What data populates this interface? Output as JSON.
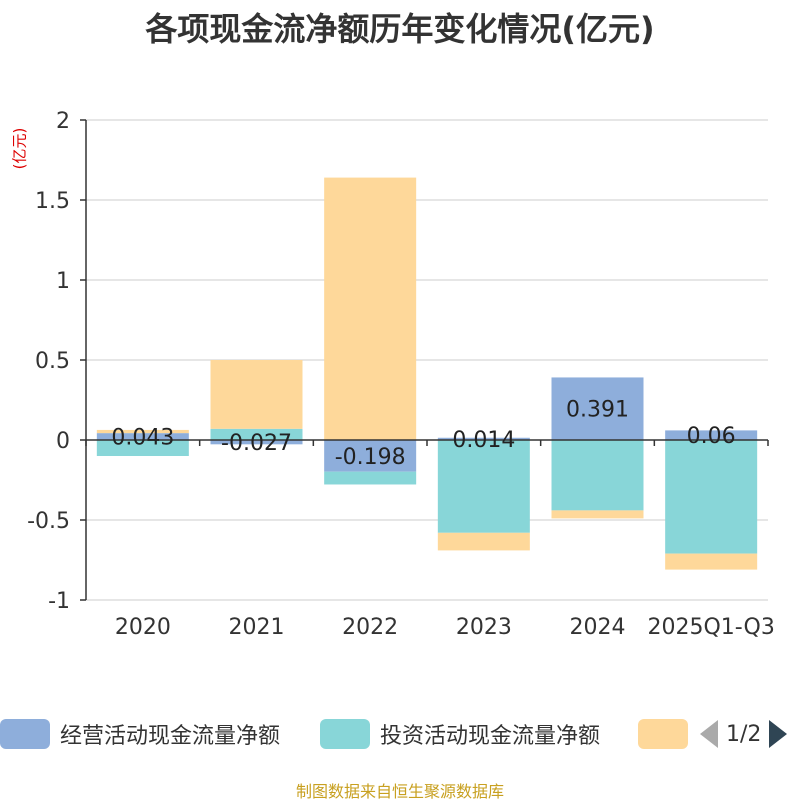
{
  "title": "各项现金流净额历年变化情况(亿元)",
  "unit_label": "(亿元)",
  "source": "制图数据来自恒生聚源数据库",
  "legend": {
    "items": [
      {
        "label": "经营活动现金流量净额",
        "color": "#8eaedb"
      },
      {
        "label": "投资活动现金流量净额",
        "color": "#88d6d8"
      },
      {
        "label": "",
        "color": "#fed89a"
      }
    ],
    "page": "1/2"
  },
  "chart_data": {
    "type": "bar",
    "stacked": true,
    "categories": [
      "2020",
      "2021",
      "2022",
      "2023",
      "2024",
      "2025Q1-Q3"
    ],
    "ylim": [
      -1,
      2
    ],
    "yticks": [
      "2",
      "1.5",
      "1",
      "0.5",
      "0",
      "-0.5",
      "-1"
    ],
    "grid": true,
    "legend_position": "bottom",
    "series": [
      {
        "name": "经营活动现金流量净额",
        "color": "#8eaedb",
        "values": [
          0.043,
          -0.027,
          -0.198,
          0.014,
          0.391,
          0.06
        ],
        "labels": [
          "0.043",
          "-0.027",
          "-0.198",
          "0.014",
          "0.391",
          "0.06"
        ]
      },
      {
        "name": "投资活动现金流量净额",
        "color": "#88d6d8",
        "values": [
          -0.1,
          0.07,
          -0.08,
          -0.58,
          -0.44,
          -0.71
        ]
      },
      {
        "color": "#fed89a",
        "values": [
          0.02,
          0.43,
          1.64,
          -0.11,
          -0.05,
          -0.1
        ]
      }
    ]
  }
}
